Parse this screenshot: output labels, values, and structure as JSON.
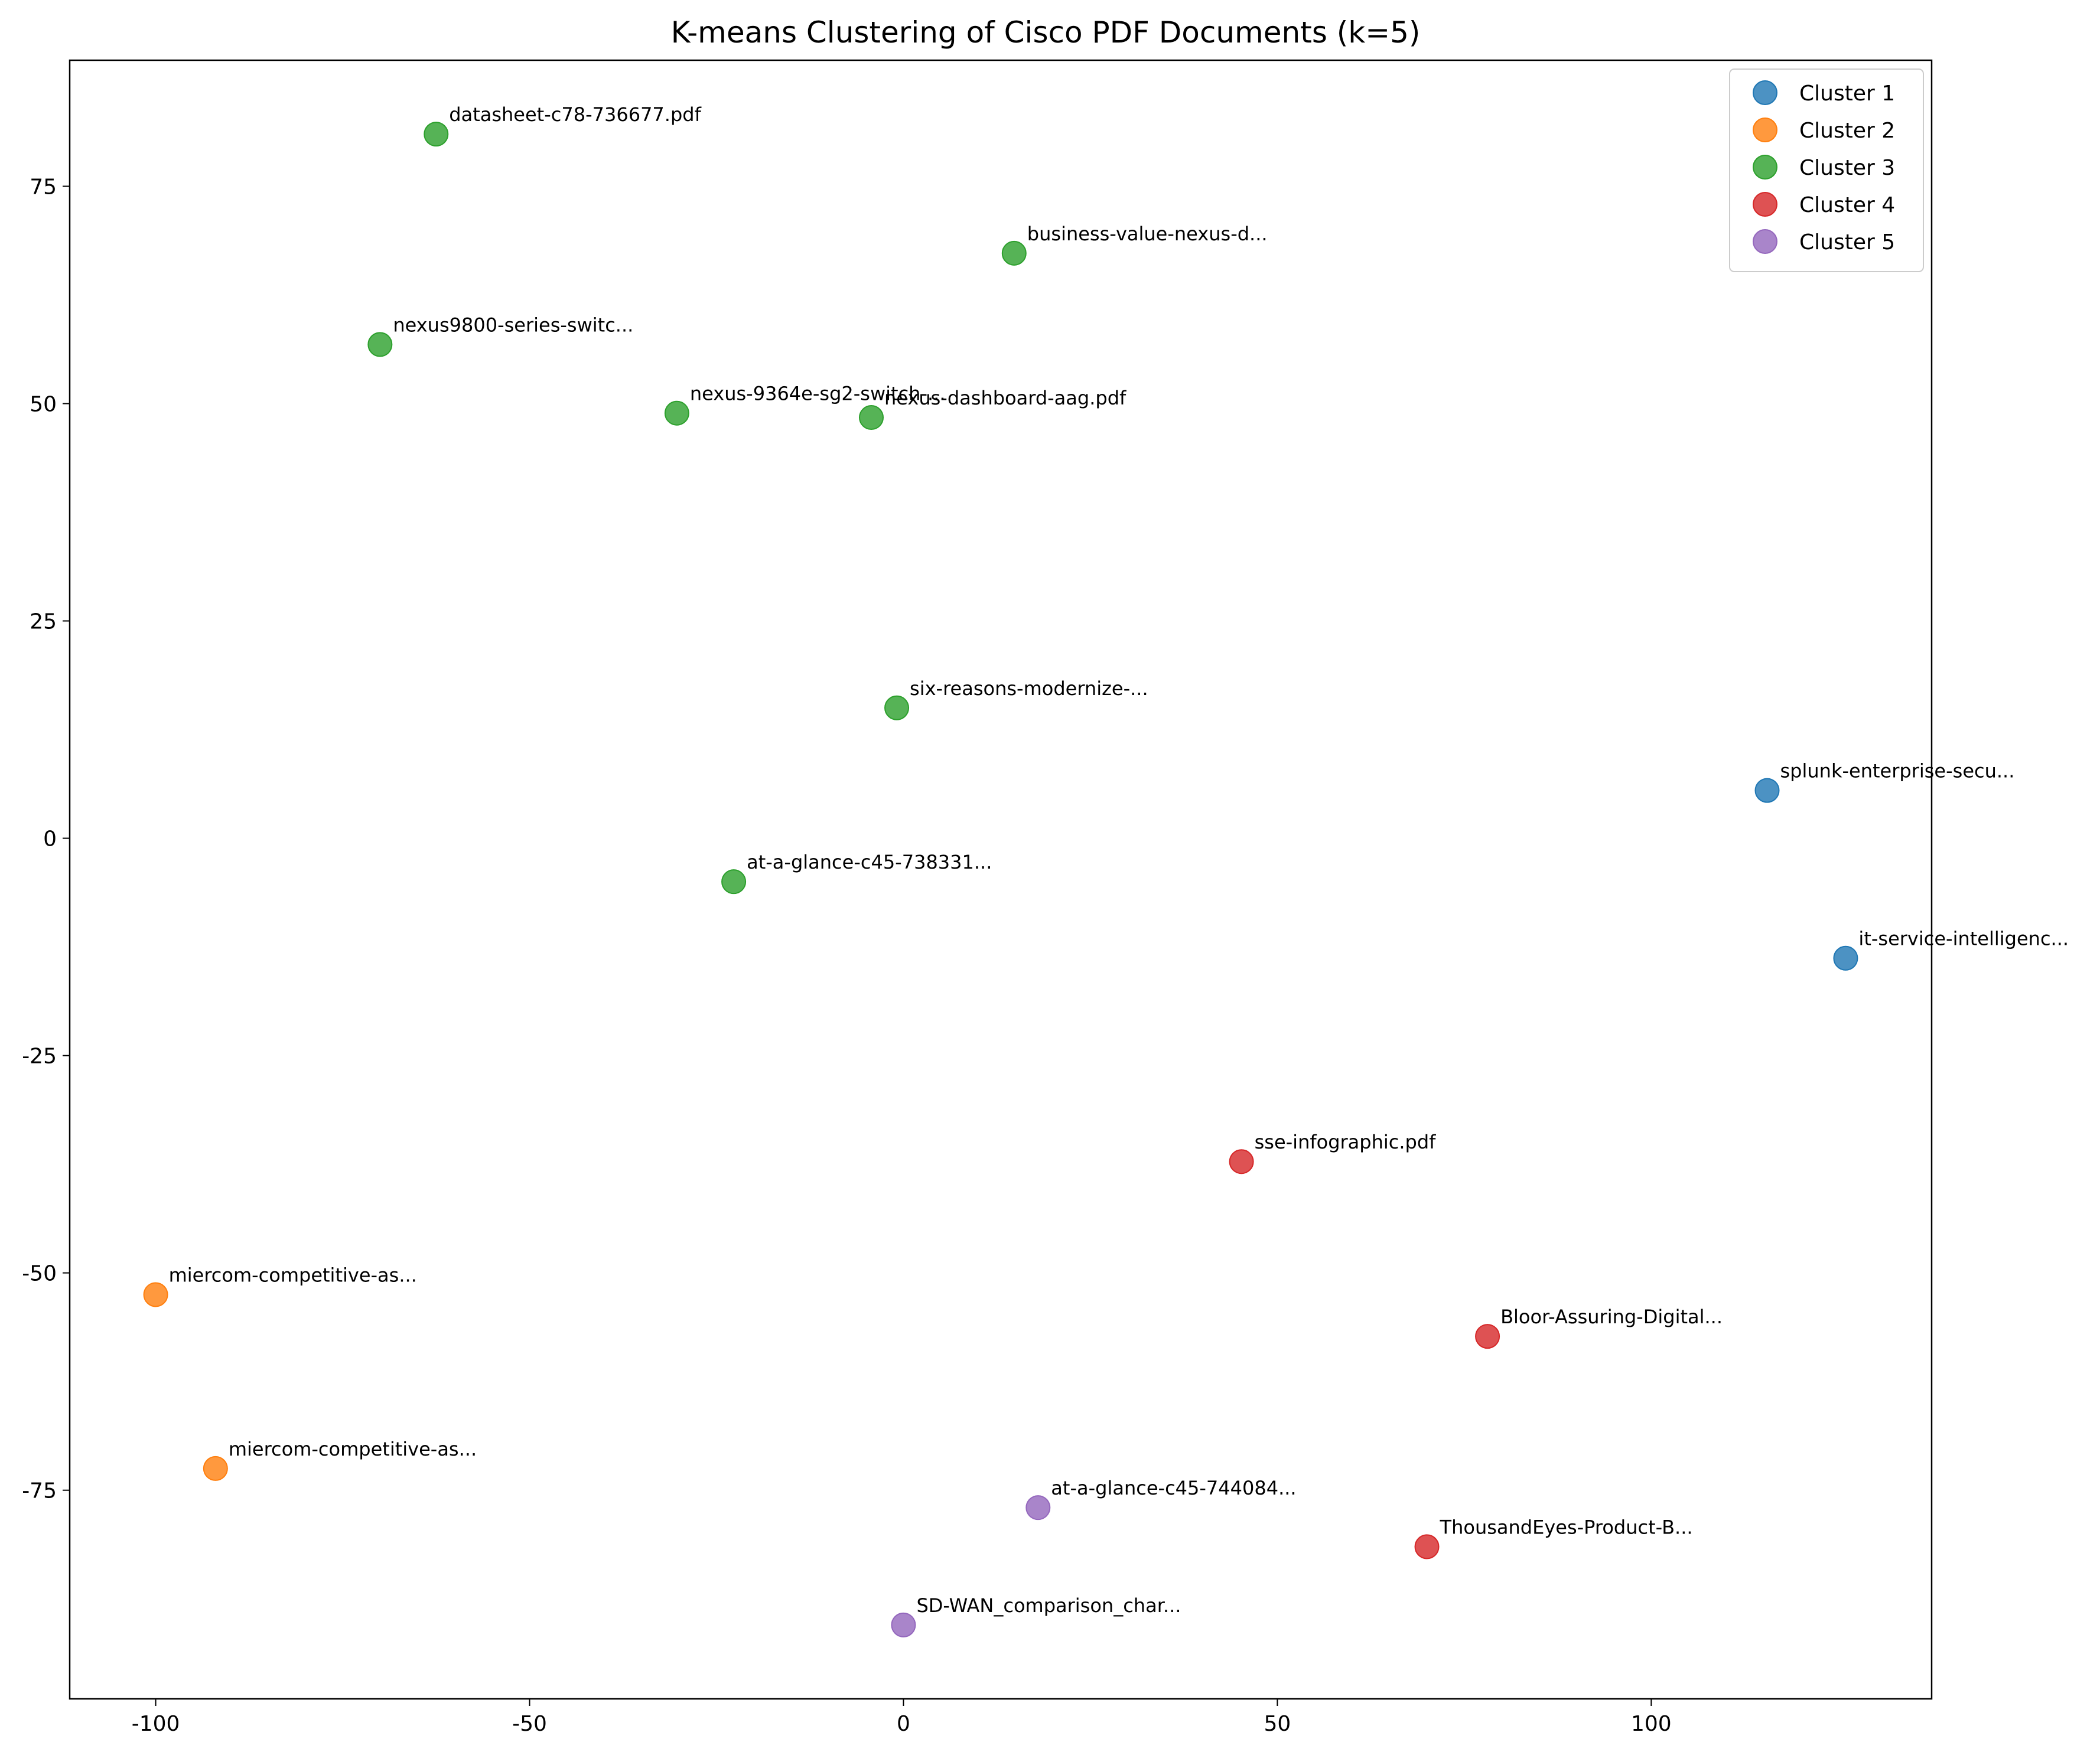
{
  "chart_data": {
    "type": "scatter",
    "title": "K-means Clustering of Cisco PDF Documents (k=5)",
    "xlabel": "",
    "ylabel": "",
    "xlim": [
      -111.5,
      137.5
    ],
    "ylim": [
      -99,
      89.5
    ],
    "xticks": [
      {
        "value": -100,
        "label": "-100"
      },
      {
        "value": -50,
        "label": "-50"
      },
      {
        "value": 0,
        "label": "0"
      },
      {
        "value": 50,
        "label": "50"
      },
      {
        "value": 100,
        "label": "100"
      }
    ],
    "yticks": [
      {
        "value": 75,
        "label": "75"
      },
      {
        "value": 50,
        "label": "50"
      },
      {
        "value": 25,
        "label": "25"
      },
      {
        "value": 0,
        "label": "0"
      },
      {
        "value": -25,
        "label": "-25"
      },
      {
        "value": -50,
        "label": "-50"
      },
      {
        "value": -75,
        "label": "-75"
      }
    ],
    "grid": false,
    "legend_position": "top-right",
    "series": [
      {
        "name": "Cluster 1",
        "color": "#1f77b4",
        "points": [
          {
            "x": 115.5,
            "y": 5.5,
            "label": "splunk-enterprise-secu..."
          },
          {
            "x": 126.0,
            "y": -13.8,
            "label": "it-service-intelligenc..."
          }
        ]
      },
      {
        "name": "Cluster 2",
        "color": "#ff7f0e",
        "points": [
          {
            "x": -100.0,
            "y": -52.5,
            "label": "miercom-competitive-as..."
          },
          {
            "x": -92.0,
            "y": -72.5,
            "label": "miercom-competitive-as..."
          }
        ]
      },
      {
        "name": "Cluster 3",
        "color": "#2ca02c",
        "points": [
          {
            "x": -62.5,
            "y": 81.0,
            "label": "datasheet-c78-736677.pdf"
          },
          {
            "x": 14.8,
            "y": 67.3,
            "label": "business-value-nexus-d..."
          },
          {
            "x": -70.0,
            "y": 56.8,
            "label": "nexus9800-series-switc..."
          },
          {
            "x": -30.3,
            "y": 48.9,
            "label": "nexus-9364e-sg2-switch-..."
          },
          {
            "x": -4.3,
            "y": 48.4,
            "label": "nexus-dashboard-aag.pdf"
          },
          {
            "x": -0.9,
            "y": 15.0,
            "label": "six-reasons-modernize-..."
          },
          {
            "x": -22.7,
            "y": -5.0,
            "label": "at-a-glance-c45-738331..."
          }
        ]
      },
      {
        "name": "Cluster 4",
        "color": "#d62728",
        "points": [
          {
            "x": 45.2,
            "y": -37.2,
            "label": "sse-infographic.pdf"
          },
          {
            "x": 78.1,
            "y": -57.3,
            "label": "Bloor-Assuring-Digital..."
          },
          {
            "x": 70.0,
            "y": -81.5,
            "label": "ThousandEyes-Product-B..."
          }
        ]
      },
      {
        "name": "Cluster 5",
        "color": "#9467bd",
        "points": [
          {
            "x": 18.0,
            "y": -77.0,
            "label": "at-a-glance-c45-744084..."
          },
          {
            "x": 0.0,
            "y": -90.5,
            "label": "SD-WAN_comparison_char..."
          }
        ]
      }
    ]
  }
}
